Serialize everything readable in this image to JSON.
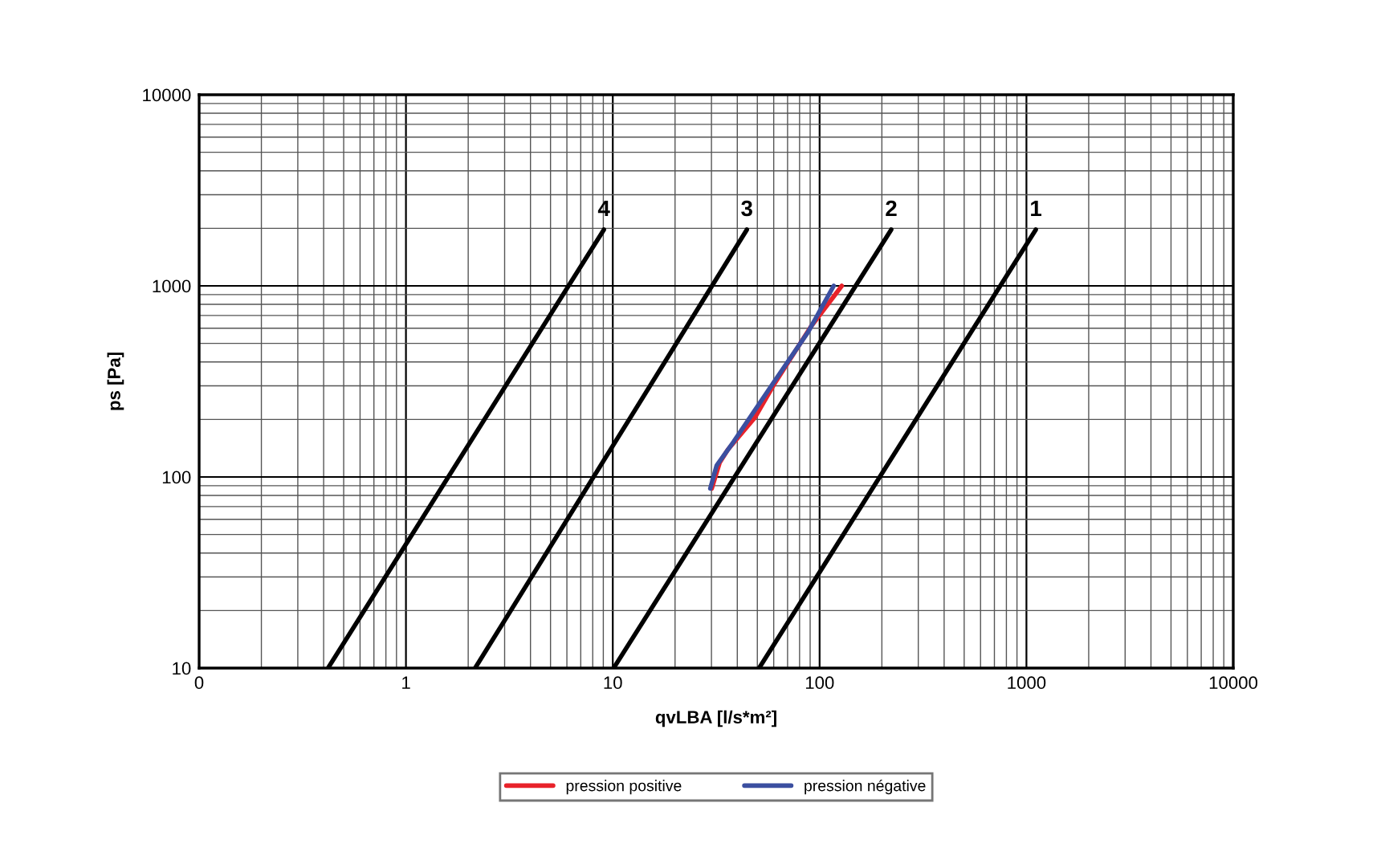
{
  "chart_data": {
    "type": "line",
    "xlabel": "qvLBA [l/s*m²]",
    "ylabel": "ps [Pa]",
    "log": "xy",
    "grid": true,
    "legend": "bottom",
    "line_style": "solid",
    "marker": "none",
    "xlim": [
      0.1,
      10000
    ],
    "xticks": [
      {
        "value": 0.1,
        "label": "0"
      },
      1,
      10,
      100,
      1000,
      10000
    ],
    "ylim": [
      10,
      10000
    ],
    "yticks": [
      10,
      100,
      1000,
      10000
    ],
    "series": [
      {
        "color": "#000000",
        "x": [
          51,
          1110
        ],
        "values": [
          10,
          1970
        ]
      },
      {
        "color": "#000000",
        "x": [
          10.1,
          222
        ],
        "values": [
          10,
          1970
        ]
      },
      {
        "color": "#000000",
        "x": [
          2.16,
          44.5
        ],
        "values": [
          10,
          1970
        ]
      },
      {
        "color": "#000000",
        "x": [
          0.42,
          9.06
        ],
        "values": [
          10,
          1970
        ]
      },
      {
        "name": "pression positive",
        "color": "#e8222a",
        "x": [
          30.1,
          32.9,
          36,
          48.6,
          59.8,
          90.8,
          128
        ],
        "values": [
          87,
          119,
          139,
          204,
          301,
          612,
          1000
        ]
      },
      {
        "name": "pression négative",
        "color": "#3b4fa0",
        "x": [
          29.6,
          31.8,
          38.4,
          59.8,
          88,
          117
        ],
        "values": [
          87,
          115,
          153,
          311,
          574,
          1000
        ]
      }
    ],
    "annotations": [
      {
        "text": "1",
        "x": 1110,
        "y": 1970
      },
      {
        "text": "2",
        "x": 222,
        "y": 1970
      },
      {
        "text": "3",
        "x": 44.5,
        "y": 1970
      },
      {
        "text": "4",
        "x": 9.06,
        "y": 1970
      }
    ]
  }
}
